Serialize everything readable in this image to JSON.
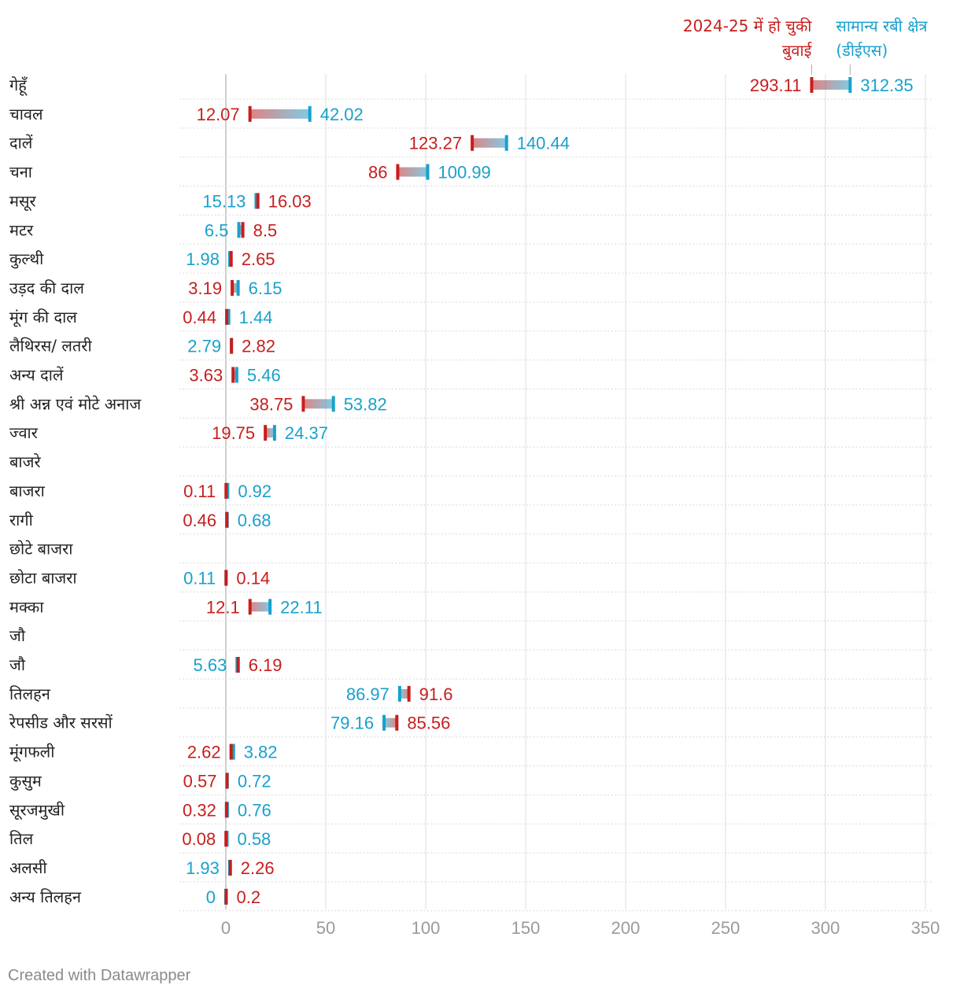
{
  "chart_data": {
    "type": "range-dot",
    "colors": {
      "sown": "#c71e1d",
      "normal": "#18a1cd"
    },
    "legend": {
      "sown": [
        "2024-25 में हो चुकी",
        "बुवाई"
      ],
      "normal": [
        "सामान्य रबी क्षेत्र",
        "(डीईएस)"
      ]
    },
    "xlim": [
      0,
      350
    ],
    "xticks": [
      0,
      50,
      100,
      150,
      200,
      250,
      300,
      350
    ],
    "rows": [
      {
        "label": "गेहूँ",
        "sown": 293.11,
        "normal": 312.35
      },
      {
        "label": "चावल",
        "sown": 12.07,
        "normal": 42.02
      },
      {
        "label": "दालें",
        "sown": 123.27,
        "normal": 140.44
      },
      {
        "label": "चना",
        "sown": 86,
        "normal": 100.99
      },
      {
        "label": "मसूर",
        "sown": 16.03,
        "normal": 15.13
      },
      {
        "label": "मटर",
        "sown": 8.5,
        "normal": 6.5
      },
      {
        "label": "कुल्थी",
        "sown": 2.65,
        "normal": 1.98
      },
      {
        "label": "उड़द की दाल",
        "sown": 3.19,
        "normal": 6.15
      },
      {
        "label": "मूंग की दाल",
        "sown": 0.44,
        "normal": 1.44
      },
      {
        "label": "लैथिरस/ लतरी",
        "sown": 2.82,
        "normal": 2.79
      },
      {
        "label": "अन्य दालें",
        "sown": 3.63,
        "normal": 5.46
      },
      {
        "label": " श्री अन्न एवं मोटे अनाज",
        "sown": 38.75,
        "normal": 53.82
      },
      {
        "label": "ज्वार",
        "sown": 19.75,
        "normal": 24.37
      },
      {
        "label": "बाजरे",
        "sown": null,
        "normal": null
      },
      {
        "label": "बाजरा",
        "sown": 0.11,
        "normal": 0.92
      },
      {
        "label": "रागी",
        "sown": 0.46,
        "normal": 0.68
      },
      {
        "label": "छोटे बाजरा",
        "sown": null,
        "normal": null
      },
      {
        "label": "छोटा बाजरा",
        "sown": 0.14,
        "normal": 0.11
      },
      {
        "label": "मक्का",
        "sown": 12.1,
        "normal": 22.11
      },
      {
        "label": "जौ",
        "sown": null,
        "normal": null
      },
      {
        "label": "जौ",
        "sown": 6.19,
        "normal": 5.63
      },
      {
        "label": "तिलहन",
        "sown": 91.6,
        "normal": 86.97
      },
      {
        "label": "रेपसीड और सरसों",
        "sown": 85.56,
        "normal": 79.16
      },
      {
        "label": "मूंगफली",
        "sown": 2.62,
        "normal": 3.82
      },
      {
        "label": "कुसुम",
        "sown": 0.57,
        "normal": 0.72
      },
      {
        "label": "सूरजमुखी",
        "sown": 0.32,
        "normal": 0.76
      },
      {
        "label": "तिल",
        "sown": 0.08,
        "normal": 0.58
      },
      {
        "label": "अलसी",
        "sown": 2.26,
        "normal": 1.93
      },
      {
        "label": "अन्य तिलहन",
        "sown": 0.2,
        "normal": 0
      }
    ]
  },
  "footer": {
    "credit": "Created with Datawrapper"
  }
}
